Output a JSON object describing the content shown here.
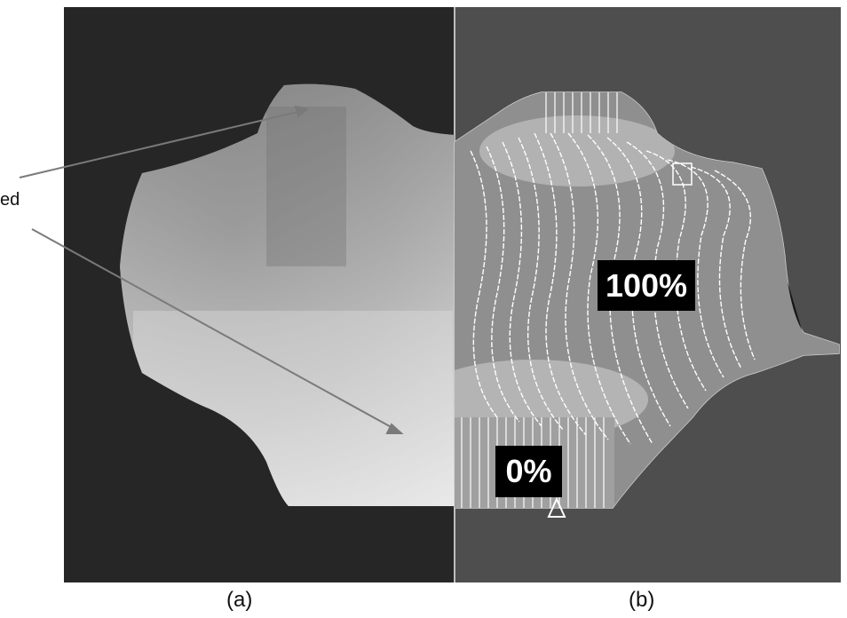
{
  "figure": {
    "side_label_fragment": "ed",
    "panel_a_caption": "(a)",
    "panel_b_caption": "(b)",
    "label_high": "100%",
    "label_low": "0%"
  }
}
